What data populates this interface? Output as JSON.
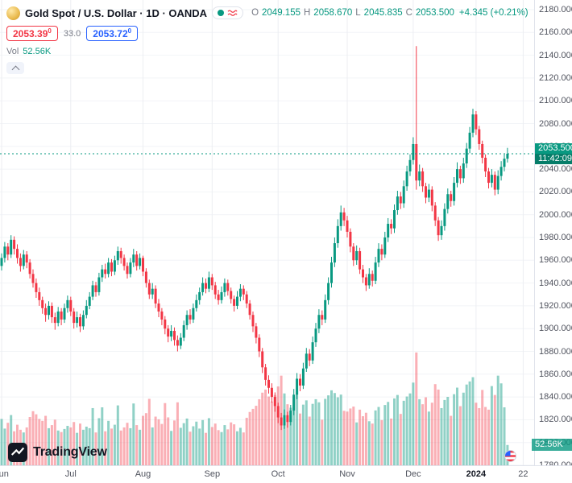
{
  "header": {
    "symbol_title": "Gold Spot / U.S. Dollar · 1D · OANDA",
    "ohlc": {
      "o_label": "O",
      "o": "2049.155",
      "h_label": "H",
      "h": "2058.670",
      "l_label": "L",
      "l": "2045.835",
      "c_label": "C",
      "c": "2053.500",
      "change": "+4.345 (+0.21%)"
    },
    "bid": "2053.39",
    "bid_sup": "0",
    "spread": "33.0",
    "ask": "2053.72",
    "ask_sup": "0",
    "vol_label": "Vol",
    "vol_value": "52.56K"
  },
  "axis": {
    "price_ticks": [
      "2180.000",
      "2160.000",
      "2140.000",
      "2120.000",
      "2100.000",
      "2080.000",
      "2060.000",
      "2040.000",
      "2020.000",
      "2000.000",
      "1980.000",
      "1960.000",
      "1940.000",
      "1920.000",
      "1900.000",
      "1880.000",
      "1860.000",
      "1840.000",
      "1820.000",
      "1800.000",
      "1780.000"
    ],
    "time_ticks": [
      {
        "label": "Jun",
        "day": 0
      },
      {
        "label": "Jul",
        "day": 22
      },
      {
        "label": "Aug",
        "day": 45
      },
      {
        "label": "Sep",
        "day": 67
      },
      {
        "label": "Oct",
        "day": 88
      },
      {
        "label": "Nov",
        "day": 110
      },
      {
        "label": "Dec",
        "day": 131
      },
      {
        "label": "2024",
        "day": 151,
        "bold": true
      },
      {
        "label": "22",
        "day": 166
      }
    ],
    "last_price": "2053.500",
    "countdown": "11:42:09",
    "volume_axis_label": "52.56K"
  },
  "footer": {
    "logo_text": "TradingView"
  },
  "colors": {
    "up": "#089981",
    "down": "#F23645",
    "accent_blue": "#2962FF"
  },
  "chart_data": {
    "type": "candlestick+volume",
    "title": "Gold Spot / U.S. Dollar, 1D, OANDA",
    "price_range": [
      1780,
      2180
    ],
    "last_price": 2053.5,
    "legend_ohlc": {
      "open": 2049.155,
      "high": 2058.67,
      "low": 2045.835,
      "close": 2053.5,
      "change": 4.345,
      "change_pct": 0.21
    },
    "candles_format": [
      "open",
      "high",
      "low",
      "close"
    ],
    "candles": [
      [
        1955,
        1966,
        1951,
        1962
      ],
      [
        1962,
        1976,
        1958,
        1972
      ],
      [
        1972,
        1975,
        1960,
        1965
      ],
      [
        1965,
        1982,
        1962,
        1978
      ],
      [
        1978,
        1981,
        1965,
        1970
      ],
      [
        1970,
        1974,
        1957,
        1962
      ],
      [
        1962,
        1966,
        1950,
        1955
      ],
      [
        1955,
        1969,
        1952,
        1965
      ],
      [
        1965,
        1968,
        1953,
        1958
      ],
      [
        1958,
        1961,
        1944,
        1948
      ],
      [
        1948,
        1952,
        1936,
        1940
      ],
      [
        1940,
        1944,
        1927,
        1932
      ],
      [
        1932,
        1936,
        1920,
        1925
      ],
      [
        1925,
        1928,
        1913,
        1918
      ],
      [
        1918,
        1922,
        1906,
        1912
      ],
      [
        1912,
        1924,
        1908,
        1920
      ],
      [
        1920,
        1923,
        1905,
        1910
      ],
      [
        1910,
        1914,
        1899,
        1905
      ],
      [
        1905,
        1919,
        1902,
        1915
      ],
      [
        1915,
        1918,
        1903,
        1908
      ],
      [
        1908,
        1922,
        1905,
        1918
      ],
      [
        1918,
        1929,
        1914,
        1925
      ],
      [
        1925,
        1928,
        1911,
        1915
      ],
      [
        1915,
        1918,
        1900,
        1905
      ],
      [
        1905,
        1915,
        1901,
        1910
      ],
      [
        1910,
        1913,
        1897,
        1902
      ],
      [
        1902,
        1916,
        1899,
        1912
      ],
      [
        1912,
        1925,
        1909,
        1920
      ],
      [
        1920,
        1932,
        1917,
        1928
      ],
      [
        1928,
        1942,
        1925,
        1938
      ],
      [
        1938,
        1941,
        1928,
        1932
      ],
      [
        1932,
        1949,
        1929,
        1945
      ],
      [
        1945,
        1956,
        1941,
        1952
      ],
      [
        1952,
        1957,
        1944,
        1948
      ],
      [
        1948,
        1962,
        1945,
        1958
      ],
      [
        1958,
        1961,
        1946,
        1950
      ],
      [
        1950,
        1964,
        1947,
        1960
      ],
      [
        1960,
        1972,
        1956,
        1968
      ],
      [
        1968,
        1971,
        1957,
        1962
      ],
      [
        1962,
        1965,
        1951,
        1955
      ],
      [
        1955,
        1958,
        1944,
        1948
      ],
      [
        1948,
        1962,
        1945,
        1958
      ],
      [
        1958,
        1970,
        1954,
        1965
      ],
      [
        1965,
        1968,
        1951,
        1955
      ],
      [
        1955,
        1966,
        1952,
        1962
      ],
      [
        1962,
        1964,
        1946,
        1950
      ],
      [
        1950,
        1953,
        1936,
        1940
      ],
      [
        1940,
        1943,
        1926,
        1930
      ],
      [
        1930,
        1940,
        1926,
        1935
      ],
      [
        1935,
        1938,
        1918,
        1922
      ],
      [
        1922,
        1926,
        1910,
        1915
      ],
      [
        1915,
        1918,
        1903,
        1908
      ],
      [
        1908,
        1911,
        1895,
        1900
      ],
      [
        1900,
        1903,
        1888,
        1893
      ],
      [
        1893,
        1903,
        1889,
        1898
      ],
      [
        1898,
        1901,
        1885,
        1890
      ],
      [
        1890,
        1894,
        1880,
        1885
      ],
      [
        1885,
        1896,
        1882,
        1892
      ],
      [
        1892,
        1907,
        1889,
        1903
      ],
      [
        1903,
        1916,
        1899,
        1912
      ],
      [
        1912,
        1917,
        1904,
        1908
      ],
      [
        1908,
        1922,
        1905,
        1918
      ],
      [
        1918,
        1930,
        1915,
        1925
      ],
      [
        1925,
        1936,
        1921,
        1932
      ],
      [
        1932,
        1945,
        1929,
        1940
      ],
      [
        1940,
        1944,
        1931,
        1935
      ],
      [
        1935,
        1950,
        1932,
        1945
      ],
      [
        1945,
        1948,
        1934,
        1938
      ],
      [
        1938,
        1941,
        1926,
        1930
      ],
      [
        1930,
        1934,
        1921,
        1925
      ],
      [
        1925,
        1937,
        1922,
        1932
      ],
      [
        1932,
        1944,
        1928,
        1940
      ],
      [
        1940,
        1943,
        1929,
        1933
      ],
      [
        1933,
        1936,
        1922,
        1926
      ],
      [
        1926,
        1929,
        1915,
        1920
      ],
      [
        1920,
        1933,
        1917,
        1928
      ],
      [
        1928,
        1939,
        1924,
        1935
      ],
      [
        1935,
        1938,
        1925,
        1930
      ],
      [
        1930,
        1933,
        1918,
        1922
      ],
      [
        1922,
        1925,
        1908,
        1912
      ],
      [
        1912,
        1915,
        1897,
        1902
      ],
      [
        1902,
        1905,
        1887,
        1892
      ],
      [
        1892,
        1895,
        1875,
        1880
      ],
      [
        1880,
        1883,
        1861,
        1866
      ],
      [
        1866,
        1869,
        1850,
        1855
      ],
      [
        1855,
        1859,
        1843,
        1848
      ],
      [
        1848,
        1852,
        1835,
        1840
      ],
      [
        1840,
        1844,
        1827,
        1832
      ],
      [
        1832,
        1835,
        1817,
        1822
      ],
      [
        1822,
        1826,
        1811,
        1815
      ],
      [
        1815,
        1829,
        1812,
        1824
      ],
      [
        1824,
        1827,
        1813,
        1818
      ],
      [
        1818,
        1833,
        1815,
        1828
      ],
      [
        1828,
        1847,
        1824,
        1842
      ],
      [
        1842,
        1861,
        1838,
        1856
      ],
      [
        1856,
        1860,
        1845,
        1850
      ],
      [
        1850,
        1870,
        1847,
        1865
      ],
      [
        1865,
        1883,
        1862,
        1878
      ],
      [
        1878,
        1882,
        1867,
        1872
      ],
      [
        1872,
        1893,
        1869,
        1888
      ],
      [
        1888,
        1905,
        1884,
        1900
      ],
      [
        1900,
        1917,
        1896,
        1912
      ],
      [
        1912,
        1916,
        1903,
        1908
      ],
      [
        1908,
        1930,
        1905,
        1925
      ],
      [
        1925,
        1945,
        1921,
        1940
      ],
      [
        1940,
        1963,
        1936,
        1958
      ],
      [
        1958,
        1980,
        1954,
        1975
      ],
      [
        1975,
        1996,
        1971,
        1990
      ],
      [
        1990,
        2008,
        1986,
        2002
      ],
      [
        2002,
        2006,
        1990,
        1995
      ],
      [
        1995,
        1999,
        1980,
        1985
      ],
      [
        1985,
        1988,
        1967,
        1972
      ],
      [
        1972,
        1975,
        1955,
        1960
      ],
      [
        1960,
        1973,
        1956,
        1968
      ],
      [
        1968,
        1971,
        1948,
        1952
      ],
      [
        1952,
        1956,
        1940,
        1945
      ],
      [
        1945,
        1948,
        1933,
        1938
      ],
      [
        1938,
        1953,
        1935,
        1948
      ],
      [
        1948,
        1951,
        1937,
        1942
      ],
      [
        1942,
        1963,
        1939,
        1958
      ],
      [
        1958,
        1975,
        1954,
        1970
      ],
      [
        1970,
        1974,
        1960,
        1965
      ],
      [
        1965,
        1985,
        1962,
        1980
      ],
      [
        1980,
        1997,
        1976,
        1992
      ],
      [
        1992,
        1996,
        1983,
        1988
      ],
      [
        1988,
        2009,
        1984,
        2004
      ],
      [
        2004,
        2021,
        2000,
        2016
      ],
      [
        2016,
        2020,
        2005,
        2010
      ],
      [
        2010,
        2030,
        2006,
        2025
      ],
      [
        2025,
        2043,
        2021,
        2038
      ],
      [
        2038,
        2053,
        2034,
        2048
      ],
      [
        2048,
        2068,
        2044,
        2062
      ],
      [
        2062,
        2148,
        2022,
        2030
      ],
      [
        2030,
        2044,
        2025,
        2038
      ],
      [
        2038,
        2041,
        2020,
        2025
      ],
      [
        2025,
        2028,
        2010,
        2015
      ],
      [
        2015,
        2027,
        2011,
        2022
      ],
      [
        2022,
        2025,
        2003,
        2008
      ],
      [
        2008,
        2011,
        1990,
        1995
      ],
      [
        1995,
        1998,
        1977,
        1982
      ],
      [
        1982,
        1995,
        1978,
        1990
      ],
      [
        1990,
        2010,
        1986,
        2005
      ],
      [
        2005,
        2023,
        2001,
        2018
      ],
      [
        2018,
        2021,
        2007,
        2012
      ],
      [
        2012,
        2033,
        2008,
        2028
      ],
      [
        2028,
        2046,
        2024,
        2040
      ],
      [
        2040,
        2043,
        2027,
        2032
      ],
      [
        2032,
        2050,
        2028,
        2045
      ],
      [
        2045,
        2063,
        2041,
        2058
      ],
      [
        2058,
        2077,
        2054,
        2072
      ],
      [
        2072,
        2093,
        2068,
        2088
      ],
      [
        2088,
        2091,
        2070,
        2075
      ],
      [
        2075,
        2078,
        2057,
        2062
      ],
      [
        2062,
        2065,
        2045,
        2050
      ],
      [
        2050,
        2053,
        2033,
        2038
      ],
      [
        2038,
        2041,
        2023,
        2028
      ],
      [
        2028,
        2040,
        2024,
        2035
      ],
      [
        2035,
        2038,
        2017,
        2022
      ],
      [
        2022,
        2039,
        2018,
        2034
      ],
      [
        2034,
        2047,
        2030,
        2042
      ],
      [
        2042,
        2053,
        2038,
        2049.155
      ],
      [
        2049.155,
        2058.67,
        2045.835,
        2053.5
      ]
    ],
    "volumes_unit": "K",
    "volumes": [
      120,
      95,
      110,
      130,
      88,
      105,
      92,
      85,
      98,
      125,
      140,
      132,
      120,
      115,
      128,
      96,
      104,
      118,
      90,
      86,
      94,
      102,
      98,
      112,
      84,
      108,
      92,
      100,
      96,
      148,
      85,
      122,
      150,
      88,
      115,
      95,
      105,
      155,
      90,
      98,
      110,
      96,
      160,
      104,
      92,
      128,
      135,
      172,
      98,
      126,
      119,
      107,
      161,
      124,
      89,
      116,
      163,
      97,
      109,
      121,
      87,
      101,
      113,
      95,
      117,
      84,
      122,
      99,
      108,
      91,
      86,
      104,
      93,
      111,
      106,
      88,
      97,
      85,
      123,
      138,
      146,
      154,
      171,
      188,
      196,
      178,
      165,
      182,
      204,
      232,
      186,
      158,
      149,
      176,
      192,
      134,
      157,
      168,
      126,
      159,
      171,
      163,
      118,
      172,
      181,
      194,
      187,
      176,
      183,
      141,
      139,
      147,
      152,
      111,
      144,
      127,
      136,
      114,
      108,
      142,
      151,
      117,
      156,
      164,
      121,
      173,
      182,
      133,
      167,
      178,
      186,
      214,
      292,
      171,
      158,
      176,
      139,
      162,
      210,
      196,
      148,
      169,
      177,
      128,
      184,
      201,
      153,
      188,
      209,
      217,
      228,
      162,
      148,
      195,
      151,
      144,
      205,
      182,
      232,
      212,
      150,
      52.56
    ]
  }
}
